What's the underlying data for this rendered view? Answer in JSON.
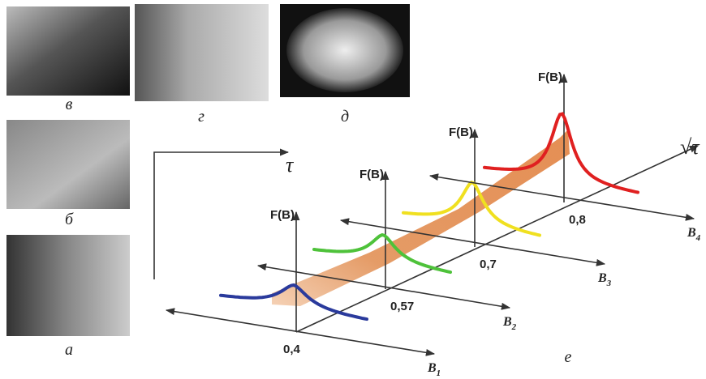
{
  "panels": [
    {
      "label": "в"
    },
    {
      "label": "г"
    },
    {
      "label": "д"
    },
    {
      "label": "б"
    },
    {
      "label": "а"
    }
  ],
  "diagram": {
    "label": "е",
    "time_axis": "τ",
    "sqrt_axis": "√τ",
    "slices": [
      {
        "ylabel": "F(B)",
        "value": "0,4",
        "axis": "B",
        "axis_sub": "1",
        "color": "#2a3a9c"
      },
      {
        "ylabel": "F(B)",
        "value": "0,57",
        "axis": "B",
        "axis_sub": "2",
        "color": "#4ec23a"
      },
      {
        "ylabel": "F(B)",
        "value": "0,7",
        "axis": "B",
        "axis_sub": "3",
        "color": "#f0e020"
      },
      {
        "ylabel": "F(B)",
        "value": "0,8",
        "axis": "B",
        "axis_sub": "4",
        "color": "#e02020"
      }
    ]
  }
}
